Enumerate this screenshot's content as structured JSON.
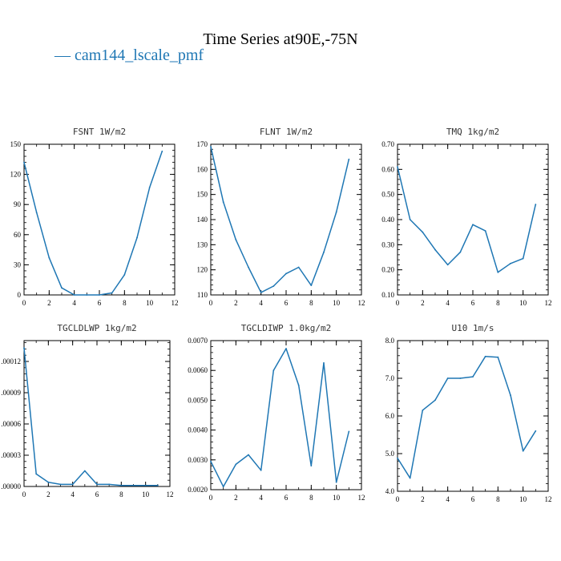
{
  "figure": {
    "title": "Time Series at90E,-75N",
    "legend": "— cam144_lscale_pmf",
    "series_color": "#1f77b4"
  },
  "chart_data": [
    {
      "type": "line",
      "title": "FSNT   1W/m2",
      "series": [
        {
          "name": "cam144_lscale_pmf",
          "x": [
            0,
            1,
            2,
            3,
            4,
            5,
            6,
            7,
            8,
            9,
            10,
            11
          ],
          "y": [
            132,
            82,
            37,
            7,
            0,
            0,
            0,
            2,
            20,
            57,
            107,
            143
          ]
        }
      ],
      "xlim": [
        0,
        12
      ],
      "ylim": [
        0,
        150
      ],
      "xticks": [
        0,
        2,
        4,
        6,
        8,
        10,
        12
      ],
      "xtick_labels": [
        "0",
        "2",
        "4",
        "6",
        "8",
        "10",
        "12"
      ],
      "yticks": [
        0,
        30,
        60,
        90,
        120,
        150
      ],
      "ytick_labels": [
        "0",
        "30",
        "60",
        "90",
        "120",
        "150"
      ]
    },
    {
      "type": "line",
      "title": "FLNT   1W/m2",
      "series": [
        {
          "name": "cam144_lscale_pmf",
          "x": [
            0,
            1,
            2,
            3,
            4,
            5,
            6,
            7,
            8,
            9,
            10,
            11
          ],
          "y": [
            169,
            147,
            132,
            121,
            111,
            113.5,
            118.5,
            121,
            113.8,
            127,
            143,
            164
          ]
        }
      ],
      "xlim": [
        0,
        12
      ],
      "ylim": [
        110,
        170
      ],
      "xticks": [
        0,
        2,
        4,
        6,
        8,
        10,
        12
      ],
      "xtick_labels": [
        "0",
        "2",
        "4",
        "6",
        "8",
        "10",
        "12"
      ],
      "yticks": [
        110,
        120,
        130,
        140,
        150,
        160,
        170
      ],
      "ytick_labels": [
        "110",
        "120",
        "130",
        "140",
        "150",
        "160",
        "170"
      ]
    },
    {
      "type": "line",
      "title": "TMQ   1kg/m2",
      "series": [
        {
          "name": "cam144_lscale_pmf",
          "x": [
            0,
            1,
            2,
            3,
            4,
            5,
            6,
            7,
            8,
            9,
            10,
            11
          ],
          "y": [
            0.61,
            0.4,
            0.35,
            0.28,
            0.22,
            0.27,
            0.38,
            0.355,
            0.19,
            0.225,
            0.245,
            0.46
          ]
        }
      ],
      "xlim": [
        0,
        12
      ],
      "ylim": [
        0.1,
        0.7
      ],
      "xticks": [
        0,
        2,
        4,
        6,
        8,
        10,
        12
      ],
      "xtick_labels": [
        "0",
        "2",
        "4",
        "6",
        "8",
        "10",
        "12"
      ],
      "yticks": [
        0.1,
        0.2,
        0.3,
        0.4,
        0.5,
        0.6,
        0.7
      ],
      "ytick_labels": [
        "0.10",
        "0.20",
        "0.30",
        "0.40",
        "0.50",
        "0.60",
        "0.70"
      ]
    },
    {
      "type": "line",
      "title": "TGCLDLWP   1kg/m2",
      "series": [
        {
          "name": "cam144_lscale_pmf",
          "x": [
            0,
            1,
            2,
            3,
            4,
            5,
            6,
            7,
            8,
            9,
            10,
            11
          ],
          "y": [
            0.000133,
            1.2e-05,
            4e-06,
            2e-06,
            2e-06,
            1.5e-05,
            2e-06,
            2e-06,
            1e-06,
            1e-06,
            1e-06,
            1e-06
          ]
        }
      ],
      "xlim": [
        0,
        12
      ],
      "ylim": [
        0,
        0.00014
      ],
      "xticks": [
        0,
        2,
        4,
        6,
        8,
        10,
        12
      ],
      "xtick_labels": [
        "0",
        "2",
        "4",
        "6",
        "8",
        "10",
        "12"
      ],
      "yticks": [
        0,
        3e-05,
        6e-05,
        9e-05,
        0.00012
      ],
      "ytick_labels": [
        ".00000",
        ".00003",
        ".00006",
        ".00009",
        ".00012"
      ]
    },
    {
      "type": "line",
      "title": "TGCLDIWP   1.0kg/m2",
      "series": [
        {
          "name": "cam144_lscale_pmf",
          "x": [
            0,
            1,
            2,
            3,
            4,
            5,
            6,
            7,
            8,
            9,
            10,
            11
          ],
          "y": [
            0.00295,
            0.0021,
            0.00285,
            0.00317,
            0.00265,
            0.006,
            0.00673,
            0.0055,
            0.0028,
            0.00625,
            0.00225,
            0.00395
          ]
        }
      ],
      "xlim": [
        0,
        12
      ],
      "ylim": [
        0.002,
        0.007
      ],
      "xticks": [
        0,
        2,
        4,
        6,
        8,
        10,
        12
      ],
      "xtick_labels": [
        "0",
        "2",
        "4",
        "6",
        "8",
        "10",
        "12"
      ],
      "yticks": [
        0.002,
        0.003,
        0.004,
        0.005,
        0.006,
        0.007
      ],
      "ytick_labels": [
        "0.0020",
        "0.0030",
        "0.0040",
        "0.0050",
        "0.0060",
        "0.0070"
      ]
    },
    {
      "type": "line",
      "title": "U10   1m/s",
      "series": [
        {
          "name": "cam144_lscale_pmf",
          "x": [
            0,
            1,
            2,
            3,
            4,
            5,
            6,
            7,
            8,
            9,
            10,
            11
          ],
          "y": [
            4.88,
            4.35,
            6.15,
            6.42,
            7.0,
            7.0,
            7.04,
            7.58,
            7.56,
            6.55,
            5.07,
            5.6
          ]
        }
      ],
      "xlim": [
        0,
        12
      ],
      "ylim": [
        4.0,
        8.0
      ],
      "xticks": [
        0,
        2,
        4,
        6,
        8,
        10,
        12
      ],
      "xtick_labels": [
        "0",
        "2",
        "4",
        "6",
        "8",
        "10",
        "12"
      ],
      "yticks": [
        4.0,
        5.0,
        6.0,
        7.0,
        8.0
      ],
      "ytick_labels": [
        "4.0",
        "5.0",
        "6.0",
        "7.0",
        "8.0"
      ]
    }
  ]
}
